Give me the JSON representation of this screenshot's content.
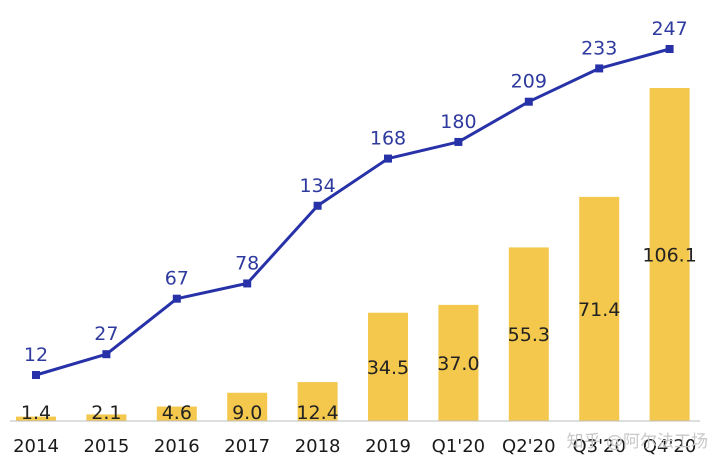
{
  "chart_data": {
    "type": "bar",
    "categories": [
      "2014",
      "2015",
      "2016",
      "2017",
      "2018",
      "2019",
      "Q1'20",
      "Q2'20",
      "Q3'20",
      "Q4'20"
    ],
    "series": [
      {
        "type": "bar",
        "values": [
          1.4,
          2.1,
          4.6,
          9.0,
          12.4,
          34.5,
          37.0,
          55.3,
          71.4,
          106.1
        ],
        "labels": [
          "1.4",
          "2.1",
          "4.6",
          "9.0",
          "12.4",
          "34.5",
          "37.0",
          "55.3",
          "71.4",
          "106.1"
        ]
      },
      {
        "type": "line",
        "values": [
          12,
          27,
          67,
          78,
          134,
          168,
          180,
          209,
          233,
          247
        ],
        "labels": [
          "12",
          "27",
          "67",
          "78",
          "134",
          "168",
          "180",
          "209",
          "233",
          "247"
        ]
      }
    ],
    "title": "",
    "xlabel": "",
    "ylabel": "",
    "grid": false,
    "legend": "none"
  },
  "watermark": "知乎 @阿尔法工场",
  "colors": {
    "bar": "#f4c84d",
    "line": "#2832a8",
    "line_label": "#2e3a9e"
  }
}
